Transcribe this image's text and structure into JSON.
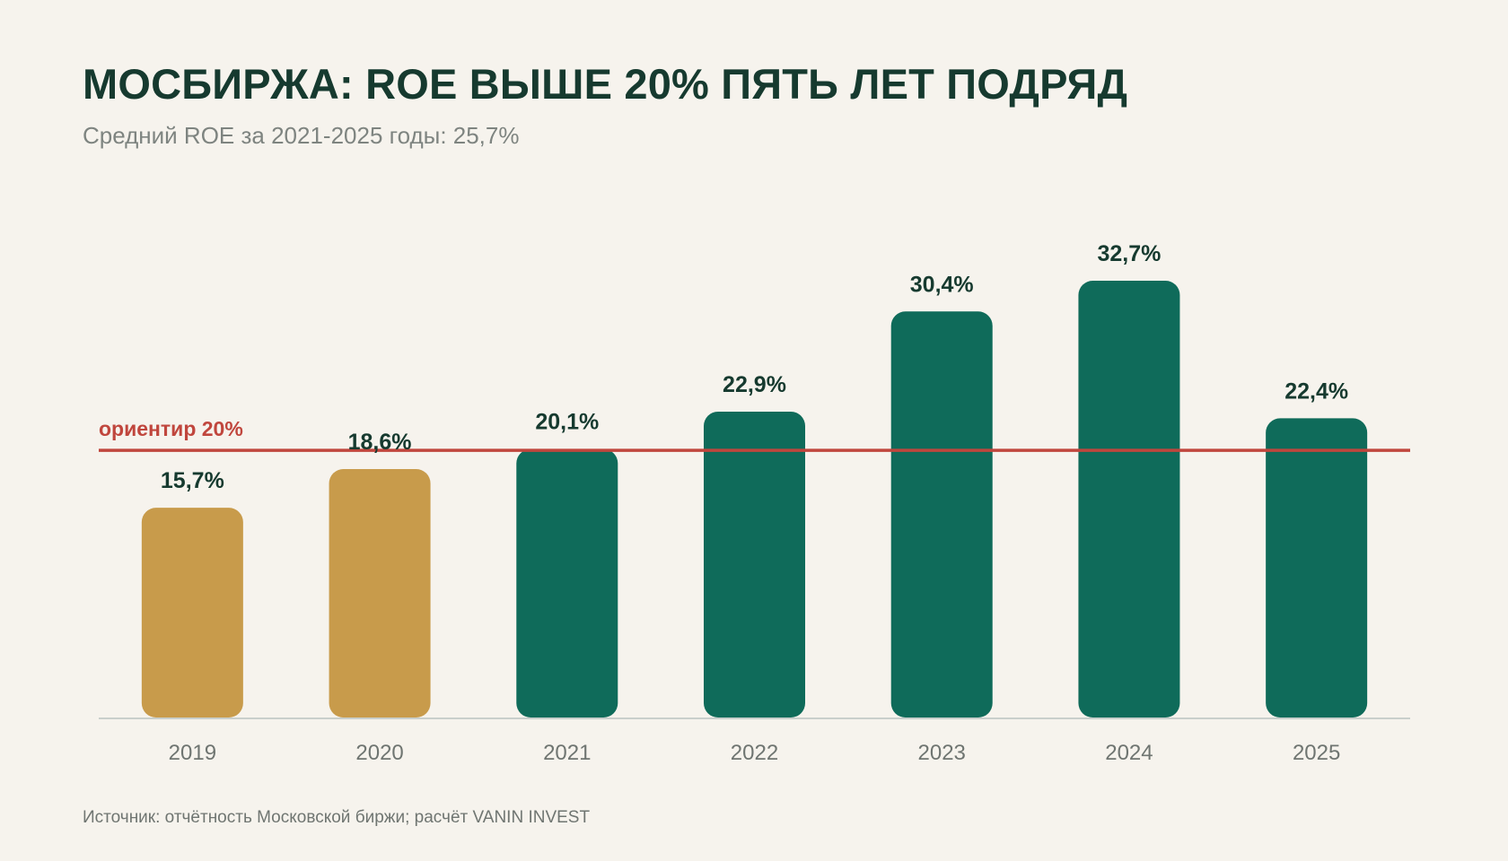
{
  "chart_data": {
    "type": "bar",
    "title": "МОСБИРЖА: ROE ВЫШЕ 20% ПЯТЬ ЛЕТ ПОДРЯД",
    "subtitle": "Средний ROE за 2021-2025 годы: 25,7%",
    "categories": [
      "2019",
      "2020",
      "2021",
      "2022",
      "2023",
      "2024",
      "2025"
    ],
    "values": [
      15.7,
      18.6,
      20.1,
      22.9,
      30.4,
      32.7,
      22.4
    ],
    "value_labels": [
      "15,7%",
      "18,6%",
      "20,1%",
      "22,9%",
      "30,4%",
      "32,7%",
      "22,4%"
    ],
    "bar_colors": [
      "#c89b4b",
      "#c89b4b",
      "#0f6b5a",
      "#0f6b5a",
      "#0f6b5a",
      "#0f6b5a",
      "#0f6b5a"
    ],
    "ylim": [
      0,
      32.7
    ],
    "grid": false,
    "reference_line": {
      "value": 20,
      "label": "ориентир 20%",
      "color": "#c0463d"
    },
    "source": "Источник: отчётность Московской биржи; расчёт VANIN INVEST"
  },
  "colors": {
    "background": "#f6f3ed",
    "title": "#163a2f",
    "subtitle": "#7e8480",
    "value_label": "#163a2f",
    "tick_label": "#6f7571",
    "baseline": "#c9cfcc",
    "below_target": "#c89b4b",
    "above_target": "#0f6b5a",
    "reference": "#c0463d"
  }
}
